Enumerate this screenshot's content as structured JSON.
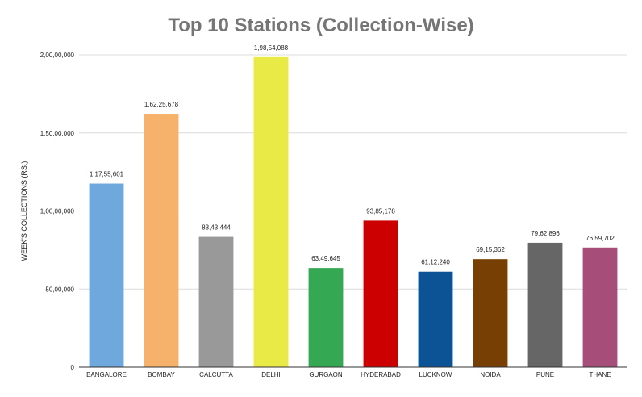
{
  "chart_data": {
    "type": "bar",
    "title": "Top 10 Stations (Collection-Wise)",
    "xlabel": "",
    "ylabel": "WEEK'S COLLECTIONS (RS.)",
    "ylim": [
      0,
      20000000
    ],
    "yticks": [
      {
        "value": 0,
        "label": "0"
      },
      {
        "value": 5000000,
        "label": "50,00,000"
      },
      {
        "value": 10000000,
        "label": "1,00,00,000"
      },
      {
        "value": 15000000,
        "label": "1,50,00,000"
      },
      {
        "value": 20000000,
        "label": "2,00,00,000"
      }
    ],
    "grid": true,
    "legend": "none",
    "categories": [
      "BANGALORE",
      "BOMBAY",
      "CALCUTTA",
      "DELHI",
      "GURGAON",
      "HYDERABAD",
      "LUCKNOW",
      "NOIDA",
      "PUNE",
      "THANE"
    ],
    "values": [
      11755601,
      16225678,
      8343444,
      19854088,
      6349645,
      9385178,
      6112240,
      6915362,
      7962896,
      7659702
    ],
    "value_labels": [
      "1,17,55,601",
      "1,62,25,678",
      "83,43,444",
      "1,98,54,088",
      "63,49,645",
      "93,85,178",
      "61,12,240",
      "69,15,362",
      "79,62,896",
      "76,59,702"
    ],
    "colors": [
      "#6fa8dc",
      "#f6b26b",
      "#999999",
      "#eaea46",
      "#34a853",
      "#cc0000",
      "#0b5394",
      "#783f04",
      "#666666",
      "#a64d79"
    ]
  }
}
